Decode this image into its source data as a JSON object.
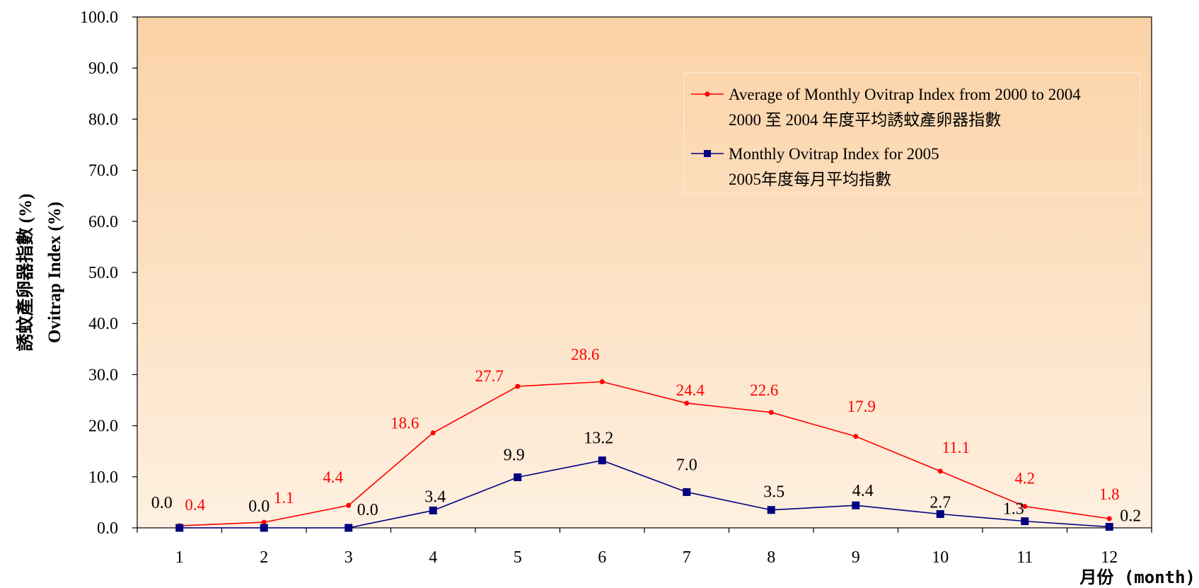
{
  "chart_data": {
    "type": "line",
    "categories": [
      "1",
      "2",
      "3",
      "4",
      "5",
      "6",
      "7",
      "8",
      "9",
      "10",
      "11",
      "12"
    ],
    "ylim": [
      0,
      100
    ],
    "yticks": [
      "0.0",
      "10.0",
      "20.0",
      "30.0",
      "40.0",
      "50.0",
      "60.0",
      "70.0",
      "80.0",
      "90.0",
      "100.0"
    ],
    "ylabel_zh": "誘蚊產卵器指數 (%)",
    "ylabel_en": "Ovitrap Index (%)",
    "xlabel": "月份 (month)",
    "legend_position": "top-right",
    "background_gradient": [
      "#fbd2a6",
      "#fef0e0"
    ],
    "series": [
      {
        "legend_line1": "Average of Monthly Ovitrap Index from 2000 to 2004",
        "legend_line2": "2000 至 2004 年度平均誘蚊產卵器指數",
        "color": "#ff0000",
        "marker": "circle",
        "values": [
          0.4,
          1.1,
          4.4,
          18.6,
          27.7,
          28.6,
          24.4,
          22.6,
          17.9,
          11.1,
          4.2,
          1.8
        ],
        "labels": [
          "0.4",
          "1.1",
          "4.4",
          "18.6",
          "27.7",
          "28.6",
          "24.4",
          "22.6",
          "17.9",
          "11.1",
          "4.2",
          "1.8"
        ]
      },
      {
        "legend_line1": "Monthly Ovitrap Index for 2005",
        "legend_line2": "2005年度每月平均指數",
        "color": "#000080",
        "marker": "square",
        "values": [
          0.0,
          0.0,
          0.0,
          3.4,
          9.9,
          13.2,
          7.0,
          3.5,
          4.4,
          2.7,
          1.3,
          0.2
        ],
        "labels": [
          "0.0",
          "0.0",
          "0.0",
          "3.4",
          "9.9",
          "13.2",
          "7.0",
          "3.5",
          "4.4",
          "2.7",
          "1.3",
          "0.2"
        ]
      }
    ]
  }
}
